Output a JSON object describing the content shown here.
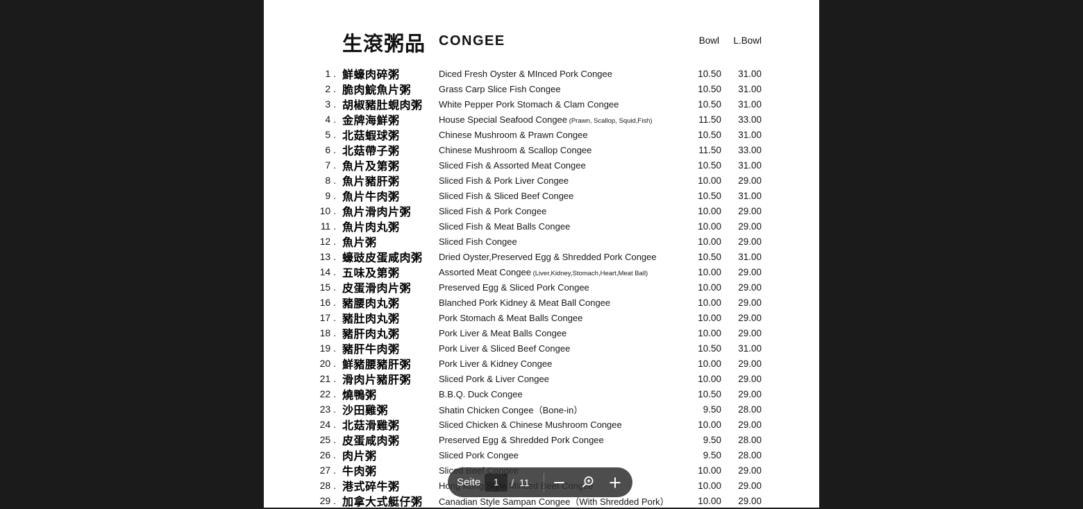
{
  "viewer": {
    "background_color": "#1b1b1b",
    "toolbar_color": "rgba(46,46,46,0.85)",
    "toolbar": {
      "page_label": "Seite",
      "page_value": "1",
      "separator": "/",
      "total_pages": "11"
    }
  },
  "document": {
    "page_color": "#ffffff",
    "text_color": "#111111",
    "header": {
      "title_zh": "生滾粥品",
      "title_en": "CONGEE",
      "col_bowl": "Bowl",
      "col_lbowl": "L.Bowl"
    },
    "items": [
      {
        "num": "1 .",
        "zh": "鮮蠔肉碎粥",
        "en": "Diced Fresh Oyster & MInced Pork Congee",
        "note": "",
        "bowl": "10.50",
        "lbowl": "31.00"
      },
      {
        "num": "2 .",
        "zh": "脆肉鯇魚片粥",
        "en": "Grass Carp Slice Fish Congee",
        "note": "",
        "bowl": "10.50",
        "lbowl": "31.00"
      },
      {
        "num": "3 .",
        "zh": "胡椒豬肚蜆肉粥",
        "en": "White Pepper Pork Stomach & Clam Congee",
        "note": "",
        "bowl": "10.50",
        "lbowl": "31.00"
      },
      {
        "num": "4 .",
        "zh": "金牌海鮮粥",
        "en": "House Special Seafood Congee",
        "note": "(Prawn, Scallop, Squid,Fish)",
        "bowl": "11.50",
        "lbowl": "33.00"
      },
      {
        "num": "5 .",
        "zh": "北菇蝦球粥",
        "en": "Chinese Mushroom & Prawn Congee",
        "note": "",
        "bowl": "10.50",
        "lbowl": "31.00"
      },
      {
        "num": "6 .",
        "zh": "北菇帶子粥",
        "en": "Chinese Mushroom & Scallop Congee",
        "note": "",
        "bowl": "11.50",
        "lbowl": "33.00"
      },
      {
        "num": "7 .",
        "zh": "魚片及第粥",
        "en": "Sliced Fish & Assorted Meat Congee",
        "note": "",
        "bowl": "10.50",
        "lbowl": "31.00"
      },
      {
        "num": "8 .",
        "zh": "魚片豬肝粥",
        "en": "Sliced Fish & Pork Liver Congee",
        "note": "",
        "bowl": "10.00",
        "lbowl": "29.00"
      },
      {
        "num": "9 .",
        "zh": "魚片牛肉粥",
        "en": "Sliced Fish & Sliced Beef Congee",
        "note": "",
        "bowl": "10.50",
        "lbowl": "31.00"
      },
      {
        "num": "10 .",
        "zh": "魚片滑肉片粥",
        "en": "Sliced Fish & Pork Congee",
        "note": "",
        "bowl": "10.00",
        "lbowl": "29.00"
      },
      {
        "num": "11 .",
        "zh": "魚片肉丸粥",
        "en": "Sliced Fish & Meat Balls Congee",
        "note": "",
        "bowl": "10.00",
        "lbowl": "29.00"
      },
      {
        "num": "12 .",
        "zh": "魚片粥",
        "en": "Sliced Fish Congee",
        "note": "",
        "bowl": "10.00",
        "lbowl": "29.00"
      },
      {
        "num": "13 .",
        "zh": "蠔豉皮蛋咸肉粥",
        "en": "Dried Oyster,Preserved Egg & Shredded Pork Congee",
        "note": "",
        "bowl": "10.50",
        "lbowl": "31.00"
      },
      {
        "num": "14 .",
        "zh": "五味及第粥",
        "en": "Assorted Meat Congee",
        "note": "(Liver,Kidney,Stomach,Heart,Meat Ball)",
        "bowl": "10.00",
        "lbowl": "29.00"
      },
      {
        "num": "15 .",
        "zh": "皮蛋滑肉片粥",
        "en": "Preserved Egg & Sliced Pork Congee",
        "note": "",
        "bowl": "10.00",
        "lbowl": "29.00"
      },
      {
        "num": "16 .",
        "zh": "豬腰肉丸粥",
        "en": "Blanched Pork Kidney & Meat Ball Congee",
        "note": "",
        "bowl": "10.00",
        "lbowl": "29.00"
      },
      {
        "num": "17 .",
        "zh": "豬肚肉丸粥",
        "en": "Pork Stomach & Meat Balls Congee",
        "note": "",
        "bowl": "10.00",
        "lbowl": "29.00"
      },
      {
        "num": "18 .",
        "zh": "豬肝肉丸粥",
        "en": "Pork Liver & Meat Balls Congee",
        "note": "",
        "bowl": "10.00",
        "lbowl": "29.00"
      },
      {
        "num": "19 .",
        "zh": "豬肝牛肉粥",
        "en": "Pork Liver & Sliced Beef Congee",
        "note": "",
        "bowl": "10.50",
        "lbowl": "31.00"
      },
      {
        "num": "20 .",
        "zh": "鮮豬腰豬肝粥",
        "en": "Pork Liver & Kidney Congee",
        "note": "",
        "bowl": "10.00",
        "lbowl": "29.00"
      },
      {
        "num": "21 .",
        "zh": "滑肉片豬肝粥",
        "en": "Sliced Pork & Liver Congee",
        "note": "",
        "bowl": "10.00",
        "lbowl": "29.00"
      },
      {
        "num": "22 .",
        "zh": "燒鴨粥",
        "en": "B.B.Q. Duck Congee",
        "note": "",
        "bowl": "10.50",
        "lbowl": "29.00"
      },
      {
        "num": "23 .",
        "zh": "沙田雞粥",
        "en": "Shatin Chicken Congee（Bone-in）",
        "note": "",
        "bowl": "9.50",
        "lbowl": "28.00"
      },
      {
        "num": "24 .",
        "zh": "北菇滑雞粥",
        "en": "Sliced Chicken & Chinese Mushroom Congee",
        "note": "",
        "bowl": "10.00",
        "lbowl": "29.00"
      },
      {
        "num": "25 .",
        "zh": "皮蛋咸肉粥",
        "en": "Preserved Egg & Shredded Pork Congee",
        "note": "",
        "bowl": "9.50",
        "lbowl": "28.00"
      },
      {
        "num": "26 .",
        "zh": "肉片粥",
        "en": "Sliced Pork Congee",
        "note": "",
        "bowl": "9.50",
        "lbowl": "28.00"
      },
      {
        "num": "27 .",
        "zh": "牛肉粥",
        "en": "Sliced Beef Congee",
        "note": "",
        "bowl": "10.00",
        "lbowl": "29.00"
      },
      {
        "num": "28 .",
        "zh": "港式碎牛粥",
        "en": "Hong Kong Style Minced Beef Congee",
        "note": "",
        "bowl": "10.00",
        "lbowl": "29.00"
      },
      {
        "num": "29 .",
        "zh": "加拿大式艇仔粥",
        "en": "Canadian Style Sampan Congee（With Shredded Pork）",
        "note": "",
        "bowl": "10.00",
        "lbowl": "29.00"
      }
    ]
  }
}
